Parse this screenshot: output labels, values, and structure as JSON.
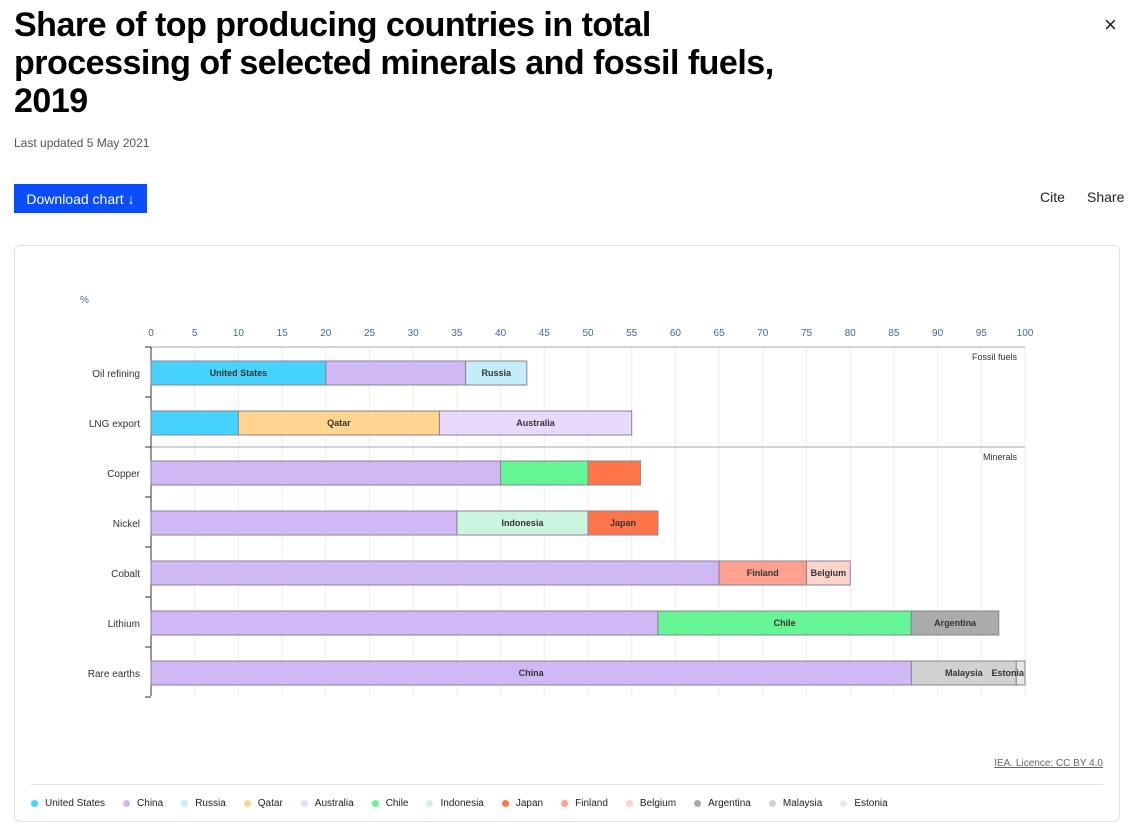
{
  "header": {
    "title": "Share of top producing countries in total processing of selected minerals and fossil fuels, 2019",
    "updated": "Last updated 5 May 2021",
    "download_label": "Download chart ↓",
    "cite_label": "Cite",
    "share_label": "Share",
    "close_icon": "×"
  },
  "footer": {
    "licence": "IEA. Licence: CC BY 4.0"
  },
  "chart_data": {
    "type": "bar",
    "orientation": "horizontal",
    "stacked": true,
    "title": "Share of top producing countries in total processing of selected minerals and fossil fuels, 2019",
    "xlabel": "%",
    "xlim": [
      0,
      100
    ],
    "ticks": [
      0,
      5,
      10,
      15,
      20,
      25,
      30,
      35,
      40,
      45,
      50,
      55,
      60,
      65,
      70,
      75,
      80,
      85,
      90,
      95,
      100
    ],
    "groups": [
      {
        "name": "Fossil fuels",
        "categories": [
          "Oil refining",
          "LNG export"
        ]
      },
      {
        "name": "Minerals",
        "categories": [
          "Copper",
          "Nickel",
          "Cobalt",
          "Lithium",
          "Rare earths"
        ]
      }
    ],
    "countries": [
      {
        "name": "United States",
        "color": "#47d3ff"
      },
      {
        "name": "China",
        "color": "#d0b8f5"
      },
      {
        "name": "Russia",
        "color": "#c3edf9"
      },
      {
        "name": "Qatar",
        "color": "#ffd58f"
      },
      {
        "name": "Australia",
        "color": "#e8dafa"
      },
      {
        "name": "Chile",
        "color": "#66f594"
      },
      {
        "name": "Indonesia",
        "color": "#cbf5de"
      },
      {
        "name": "Japan",
        "color": "#ff754a"
      },
      {
        "name": "Finland",
        "color": "#ffa08f"
      },
      {
        "name": "Belgium",
        "color": "#ffd4cc"
      },
      {
        "name": "Argentina",
        "color": "#ababab"
      },
      {
        "name": "Malaysia",
        "color": "#d1d1d1"
      },
      {
        "name": "Estonia",
        "color": "#e8e8e8"
      }
    ],
    "rows": [
      {
        "category": "Oil refining",
        "segments": [
          {
            "country": "United States",
            "value": 20,
            "label": true
          },
          {
            "country": "China",
            "value": 16,
            "label": false
          },
          {
            "country": "Russia",
            "value": 7,
            "label": true
          }
        ]
      },
      {
        "category": "LNG export",
        "segments": [
          {
            "country": "United States",
            "value": 10,
            "label": false
          },
          {
            "country": "Qatar",
            "value": 23,
            "label": true
          },
          {
            "country": "Australia",
            "value": 22,
            "label": true
          }
        ]
      },
      {
        "category": "Copper",
        "segments": [
          {
            "country": "China",
            "value": 40,
            "label": false
          },
          {
            "country": "Chile",
            "value": 10,
            "label": false
          },
          {
            "country": "Japan",
            "value": 6,
            "label": false
          }
        ]
      },
      {
        "category": "Nickel",
        "segments": [
          {
            "country": "China",
            "value": 35,
            "label": false
          },
          {
            "country": "Indonesia",
            "value": 15,
            "label": true
          },
          {
            "country": "Japan",
            "value": 8,
            "label": true
          }
        ]
      },
      {
        "category": "Cobalt",
        "segments": [
          {
            "country": "China",
            "value": 65,
            "label": false
          },
          {
            "country": "Finland",
            "value": 10,
            "label": true
          },
          {
            "country": "Belgium",
            "value": 5,
            "label": true
          }
        ]
      },
      {
        "category": "Lithium",
        "segments": [
          {
            "country": "China",
            "value": 58,
            "label": false
          },
          {
            "country": "Chile",
            "value": 29,
            "label": true
          },
          {
            "country": "Argentina",
            "value": 10,
            "label": true
          }
        ]
      },
      {
        "category": "Rare earths",
        "segments": [
          {
            "country": "China",
            "value": 87,
            "label": true
          },
          {
            "country": "Malaysia",
            "value": 12,
            "label": true
          },
          {
            "country": "Estonia",
            "value": 1,
            "label": true
          }
        ]
      }
    ]
  }
}
